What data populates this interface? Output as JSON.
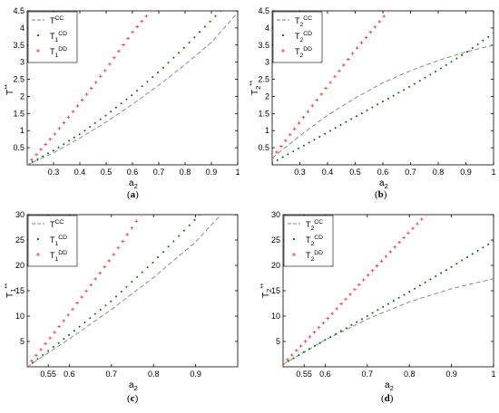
{
  "colors": {
    "CC": "#808080",
    "CD": "#006400",
    "DD": "#e04848",
    "axes": "#000000"
  },
  "chart_data": [
    {
      "type": "scatter",
      "panel": "a",
      "caption": "(a)",
      "xlabel_main": "a",
      "xlabel_sub": "2",
      "ylabel_main": "T",
      "ylabel_sub": "",
      "ylabel_sup": "**",
      "xlim": [
        0.2,
        1.0
      ],
      "ylim": [
        0,
        4.5
      ],
      "xticks": [
        0.3,
        0.4,
        0.5,
        0.6,
        0.7,
        0.8,
        0.9,
        1
      ],
      "xtick_labels": [
        "0.3",
        "0.4",
        "0.5",
        "0.6",
        "0.7",
        "0.8",
        "0.9",
        "1"
      ],
      "yticks": [
        0.5,
        1,
        1.5,
        2,
        2.5,
        3,
        3.5,
        4,
        4.5
      ],
      "ytick_labels": [
        "0.5",
        "1",
        "1.5",
        "2",
        "2.5",
        "3",
        "3.5",
        "4",
        "4.5"
      ],
      "legend": [
        {
          "key": "CC",
          "main": "T",
          "sub": "",
          "sup": "CC",
          "style": "dashed"
        },
        {
          "key": "CD",
          "main": "T",
          "sub": "1",
          "sup": "CD",
          "style": "dot"
        },
        {
          "key": "DD",
          "main": "T",
          "sub": "1",
          "sup": "DD",
          "style": "plus"
        }
      ],
      "series": [
        {
          "key": "CC",
          "style": "dashed",
          "x": [
            0.2,
            0.3,
            0.4,
            0.5,
            0.6,
            0.7,
            0.8,
            0.9,
            1.0
          ],
          "y": [
            0,
            0.35,
            0.78,
            1.25,
            1.77,
            2.33,
            2.93,
            3.58,
            4.45
          ]
        },
        {
          "key": "CD",
          "style": "dot",
          "x": [
            0.2,
            0.3,
            0.4,
            0.5,
            0.6,
            0.7,
            0.8,
            0.935
          ],
          "y": [
            0,
            0.42,
            0.9,
            1.45,
            2.05,
            2.72,
            3.45,
            4.5
          ]
        },
        {
          "key": "DD",
          "style": "plus",
          "x": [
            0.2,
            0.3,
            0.4,
            0.5,
            0.6,
            0.67
          ],
          "y": [
            0,
            0.86,
            1.8,
            2.8,
            3.88,
            4.5
          ]
        }
      ]
    },
    {
      "type": "scatter",
      "panel": "b",
      "caption": "(b)",
      "xlabel_main": "a",
      "xlabel_sub": "2",
      "ylabel_main": "T",
      "ylabel_sub": "2",
      "ylabel_sup": "**",
      "xlim": [
        0.2,
        1.0
      ],
      "ylim": [
        0,
        4.5
      ],
      "xticks": [
        0.3,
        0.4,
        0.5,
        0.6,
        0.7,
        0.8,
        0.9,
        1
      ],
      "xtick_labels": [
        "0.3",
        "0.4",
        "0.5",
        "0.6",
        "0.7",
        "0.8",
        "0.9",
        "1"
      ],
      "yticks": [
        0.5,
        1,
        1.5,
        2,
        2.5,
        3,
        3.5,
        4,
        4.5
      ],
      "ytick_labels": [
        "0.5",
        "1",
        "1.5",
        "2",
        "2.5",
        "3",
        "3.5",
        "4",
        "4.5"
      ],
      "legend": [
        {
          "key": "CC",
          "main": "T",
          "sub": "2",
          "sup": "CC",
          "style": "dashed"
        },
        {
          "key": "CD",
          "main": "T",
          "sub": "2",
          "sup": "CD",
          "style": "dot"
        },
        {
          "key": "DD",
          "main": "T",
          "sub": "2",
          "sup": "DD",
          "style": "plus"
        }
      ],
      "series": [
        {
          "key": "CC",
          "style": "dashed",
          "x": [
            0.2,
            0.3,
            0.4,
            0.5,
            0.6,
            0.7,
            0.8,
            0.9,
            1.0
          ],
          "y": [
            0.2,
            0.85,
            1.45,
            1.95,
            2.4,
            2.75,
            3.05,
            3.3,
            3.5
          ]
        },
        {
          "key": "CD",
          "style": "dot",
          "x": [
            0.2,
            0.3,
            0.4,
            0.5,
            0.6,
            0.7,
            0.8,
            0.9,
            1.0
          ],
          "y": [
            0.05,
            0.5,
            0.95,
            1.4,
            1.85,
            2.3,
            2.77,
            3.28,
            3.85
          ]
        },
        {
          "key": "DD",
          "style": "plus",
          "x": [
            0.2,
            0.3,
            0.4,
            0.5,
            0.6,
            0.62
          ],
          "y": [
            0.2,
            1.25,
            2.3,
            3.35,
            4.3,
            4.5
          ]
        }
      ]
    },
    {
      "type": "scatter",
      "panel": "c",
      "caption": "(c)",
      "xlabel_main": "a",
      "xlabel_sub": "2",
      "ylabel_main": "T",
      "ylabel_sub": "1",
      "ylabel_sup": "**",
      "xlim": [
        0.5,
        1.0
      ],
      "ylim": [
        0,
        30
      ],
      "xticks": [
        0.55,
        0.6,
        0.7,
        0.8,
        0.9
      ],
      "xtick_labels": [
        "0.55",
        "0.6",
        "0.7",
        "0.8",
        "0.9"
      ],
      "yticks": [
        5,
        10,
        15,
        20,
        25,
        30
      ],
      "ytick_labels": [
        "5",
        "10",
        "15",
        "20",
        "25",
        "30"
      ],
      "legend": [
        {
          "key": "CC",
          "main": "T",
          "sub": "",
          "sup": "CC",
          "style": "dashed"
        },
        {
          "key": "CD",
          "main": "T",
          "sub": "1",
          "sup": "CD",
          "style": "dot"
        },
        {
          "key": "DD",
          "main": "T",
          "sub": "1",
          "sup": "DD",
          "style": "plus"
        }
      ],
      "series": [
        {
          "key": "CC",
          "style": "dashed",
          "x": [
            0.5,
            0.6,
            0.7,
            0.8,
            0.9,
            0.96
          ],
          "y": [
            0,
            5.5,
            11.3,
            17.6,
            24.6,
            30
          ]
        },
        {
          "key": "CD",
          "style": "dot",
          "x": [
            0.5,
            0.6,
            0.7,
            0.8,
            0.91
          ],
          "y": [
            0,
            6.3,
            13.0,
            20.7,
            30
          ]
        },
        {
          "key": "DD",
          "style": "plus",
          "x": [
            0.5,
            0.6,
            0.7,
            0.77
          ],
          "y": [
            0,
            10.5,
            21.5,
            30
          ]
        }
      ]
    },
    {
      "type": "scatter",
      "panel": "d",
      "caption": "(d)",
      "xlabel_main": "a",
      "xlabel_sub": "2",
      "ylabel_main": "T",
      "ylabel_sub": "2",
      "ylabel_sup": "**",
      "xlim": [
        0.5,
        1.0
      ],
      "ylim": [
        0,
        30
      ],
      "xticks": [
        0.55,
        0.6,
        0.7,
        0.8,
        0.9,
        1
      ],
      "xtick_labels": [
        "0.55",
        "0.6",
        "0.7",
        "0.8",
        "0.9",
        "1"
      ],
      "yticks": [
        5,
        10,
        15,
        20,
        25,
        30
      ],
      "ytick_labels": [
        "5",
        "10",
        "15",
        "20",
        "25",
        "30"
      ],
      "legend": [
        {
          "key": "CC",
          "main": "T",
          "sub": "2",
          "sup": "CC",
          "style": "dashed"
        },
        {
          "key": "CD",
          "main": "T",
          "sub": "2",
          "sup": "CD",
          "style": "dot"
        },
        {
          "key": "DD",
          "main": "T",
          "sub": "2",
          "sup": "DD",
          "style": "plus"
        }
      ],
      "series": [
        {
          "key": "CC",
          "style": "dashed",
          "x": [
            0.5,
            0.6,
            0.7,
            0.8,
            0.9,
            1.0
          ],
          "y": [
            0.5,
            5.3,
            9.4,
            12.8,
            15.4,
            17.4
          ]
        },
        {
          "key": "CD",
          "style": "dot",
          "x": [
            0.5,
            0.6,
            0.7,
            0.8,
            0.9,
            1.0
          ],
          "y": [
            0.5,
            5.3,
            10.0,
            14.8,
            19.7,
            24.8
          ]
        },
        {
          "key": "DD",
          "style": "plus",
          "x": [
            0.5,
            0.6,
            0.7,
            0.8,
            0.84
          ],
          "y": [
            0.5,
            9.0,
            17.9,
            26.6,
            30
          ]
        }
      ]
    }
  ]
}
